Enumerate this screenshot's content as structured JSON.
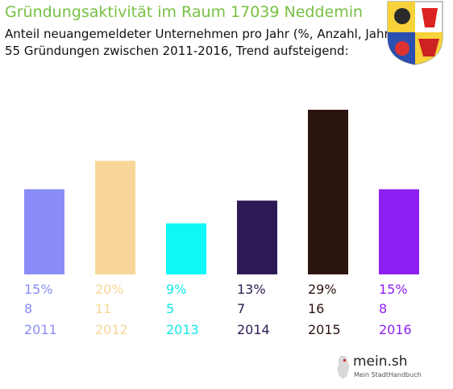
{
  "header": {
    "title": "Gründungsaktivität im Raum 17039 Neddemin",
    "subtitle_line1": "Anteil neuangemeldeter Unternehmen pro Jahr (%, Anzahl, Jahr)",
    "subtitle_line2": "55 Gründungen zwischen 2011-2016, Trend aufsteigend:"
  },
  "logo": {
    "brand": "mein.sh",
    "tagline": "Mein StadtHandbuch"
  },
  "chart_data": {
    "type": "bar",
    "categories": [
      "2011",
      "2012",
      "2013",
      "2014",
      "2015",
      "2016"
    ],
    "values": [
      15,
      20,
      9,
      13,
      29,
      15
    ],
    "percent_labels": [
      "15%",
      "20%",
      "9%",
      "13%",
      "29%",
      "15%"
    ],
    "counts": [
      "8",
      "11",
      "5",
      "7",
      "16",
      "8"
    ],
    "colors": [
      "#8a8cf7",
      "#f8d698",
      "#10f7f7",
      "#2d1a55",
      "#2c150f",
      "#8e1ff2"
    ],
    "label_colors": [
      "#8a8cf7",
      "#f8d698",
      "#10e8e8",
      "#2d1a55",
      "#2c150f",
      "#8e1ff2"
    ],
    "title": "Gründungsaktivität im Raum 17039 Neddemin",
    "xlabel": "",
    "ylabel": "",
    "grid": false
  }
}
